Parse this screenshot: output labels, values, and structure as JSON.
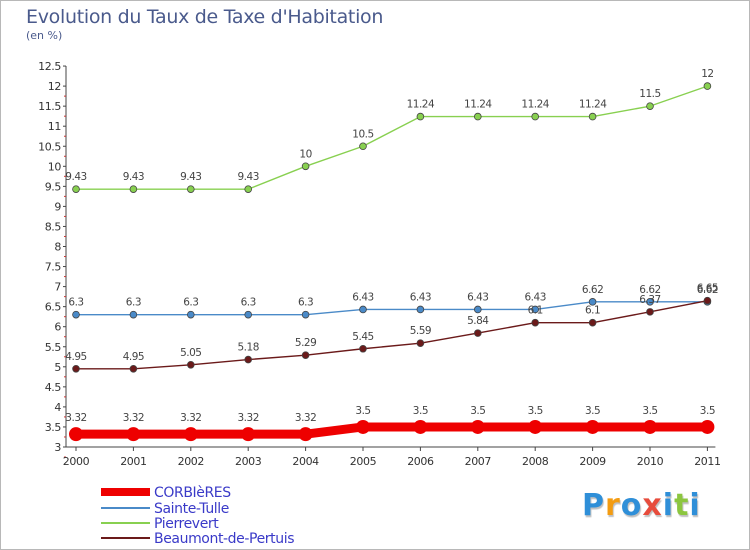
{
  "title": "Evolution du Taux de Taxe d'Habitation",
  "subtitle": "(en %)",
  "logo": {
    "letters": [
      "P",
      "r",
      "o",
      "x",
      "i",
      "t",
      "i"
    ],
    "colors": [
      "#2f8fd8",
      "#f39c12",
      "#2f8fd8",
      "#e74c3c",
      "#2f8fd8",
      "#8cc63f",
      "#2f8fd8"
    ]
  },
  "chart_data": {
    "type": "line",
    "title": "Evolution du Taux de Taxe d'Habitation",
    "ylabel": "(en %)",
    "x": [
      "2000",
      "2001",
      "2002",
      "2003",
      "2004",
      "2005",
      "2006",
      "2007",
      "2008",
      "2009",
      "2010",
      "2011"
    ],
    "ylim": [
      3,
      12.5
    ],
    "yticks": [
      "3",
      "3.5",
      "4",
      "4.5",
      "5",
      "5.5",
      "6",
      "6.5",
      "7",
      "7.5",
      "8",
      "8.5",
      "9",
      "9.5",
      "10",
      "10.5",
      "11",
      "11.5",
      "12",
      "12.5"
    ],
    "grid": false,
    "legend": "bottom-left",
    "series": [
      {
        "name": "CORBIèRES",
        "color": "#ee0000",
        "values": [
          3.32,
          3.32,
          3.32,
          3.32,
          3.32,
          3.5,
          3.5,
          3.5,
          3.5,
          3.5,
          3.5,
          3.5
        ],
        "labels": [
          "3.32",
          "3.32",
          "3.32",
          "3.32",
          "3.32",
          "3.5",
          "3.5",
          "3.5",
          "3.5",
          "3.5",
          "3.5",
          "3.5"
        ]
      },
      {
        "name": "Sainte-Tulle",
        "color": "#4a8ac8",
        "values": [
          6.3,
          6.3,
          6.3,
          6.3,
          6.3,
          6.43,
          6.43,
          6.43,
          6.43,
          6.62,
          6.62,
          6.62
        ],
        "labels": [
          "6.3",
          "6.3",
          "6.3",
          "6.3",
          "6.3",
          "6.43",
          "6.43",
          "6.43",
          "6.43",
          "6.62",
          "6.62",
          "6.62"
        ]
      },
      {
        "name": "Pierrevert",
        "color": "#88d050",
        "values": [
          9.43,
          9.43,
          9.43,
          9.43,
          10,
          10.5,
          11.24,
          11.24,
          11.24,
          11.24,
          11.5,
          12
        ],
        "labels": [
          "9.43",
          "9.43",
          "9.43",
          "9.43",
          "10",
          "10.5",
          "11.24",
          "11.24",
          "11.24",
          "11.24",
          "11.5",
          "12"
        ]
      },
      {
        "name": "Beaumont-de-Pertuis",
        "color": "#6b1a1a",
        "values": [
          4.95,
          4.95,
          5.05,
          5.18,
          5.29,
          5.45,
          5.59,
          5.84,
          6.1,
          6.1,
          6.37,
          6.65
        ],
        "labels": [
          "4.95",
          "4.95",
          "5.05",
          "5.18",
          "5.29",
          "5.45",
          "5.59",
          "5.84",
          "6.1",
          "6.1",
          "6.37",
          "6.65"
        ]
      }
    ]
  }
}
